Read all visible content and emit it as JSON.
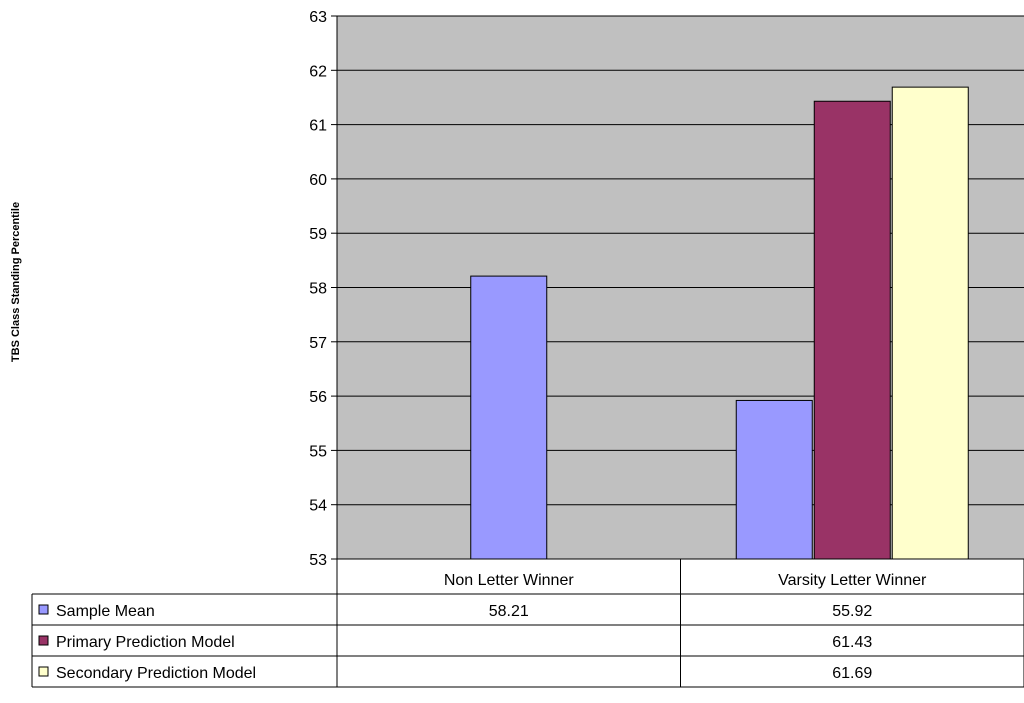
{
  "chart_data": {
    "type": "bar",
    "title": "",
    "xlabel": "",
    "ylabel": "TBS Class Standing Percentile",
    "categories": [
      "Non Letter Winner",
      "Varsity Letter Winner"
    ],
    "ylim": [
      53,
      63
    ],
    "yticks": [
      53,
      54,
      55,
      56,
      57,
      58,
      59,
      60,
      61,
      62,
      63
    ],
    "grid": true,
    "legend": "data-table-below",
    "series": [
      {
        "name": "Sample Mean",
        "color": "#9999ff",
        "values": [
          58.21,
          55.92
        ],
        "labels": [
          "58.21",
          "55.92"
        ]
      },
      {
        "name": "Primary Prediction Model",
        "color": "#993366",
        "values": [
          null,
          61.43
        ],
        "labels": [
          "",
          "61.43"
        ]
      },
      {
        "name": "Secondary Prediction Model",
        "color": "#ffffcc",
        "values": [
          null,
          61.69
        ],
        "labels": [
          "",
          "61.69"
        ]
      }
    ],
    "colors": {
      "plot_background": "#c0c0c0",
      "gridline": "#000000"
    }
  }
}
